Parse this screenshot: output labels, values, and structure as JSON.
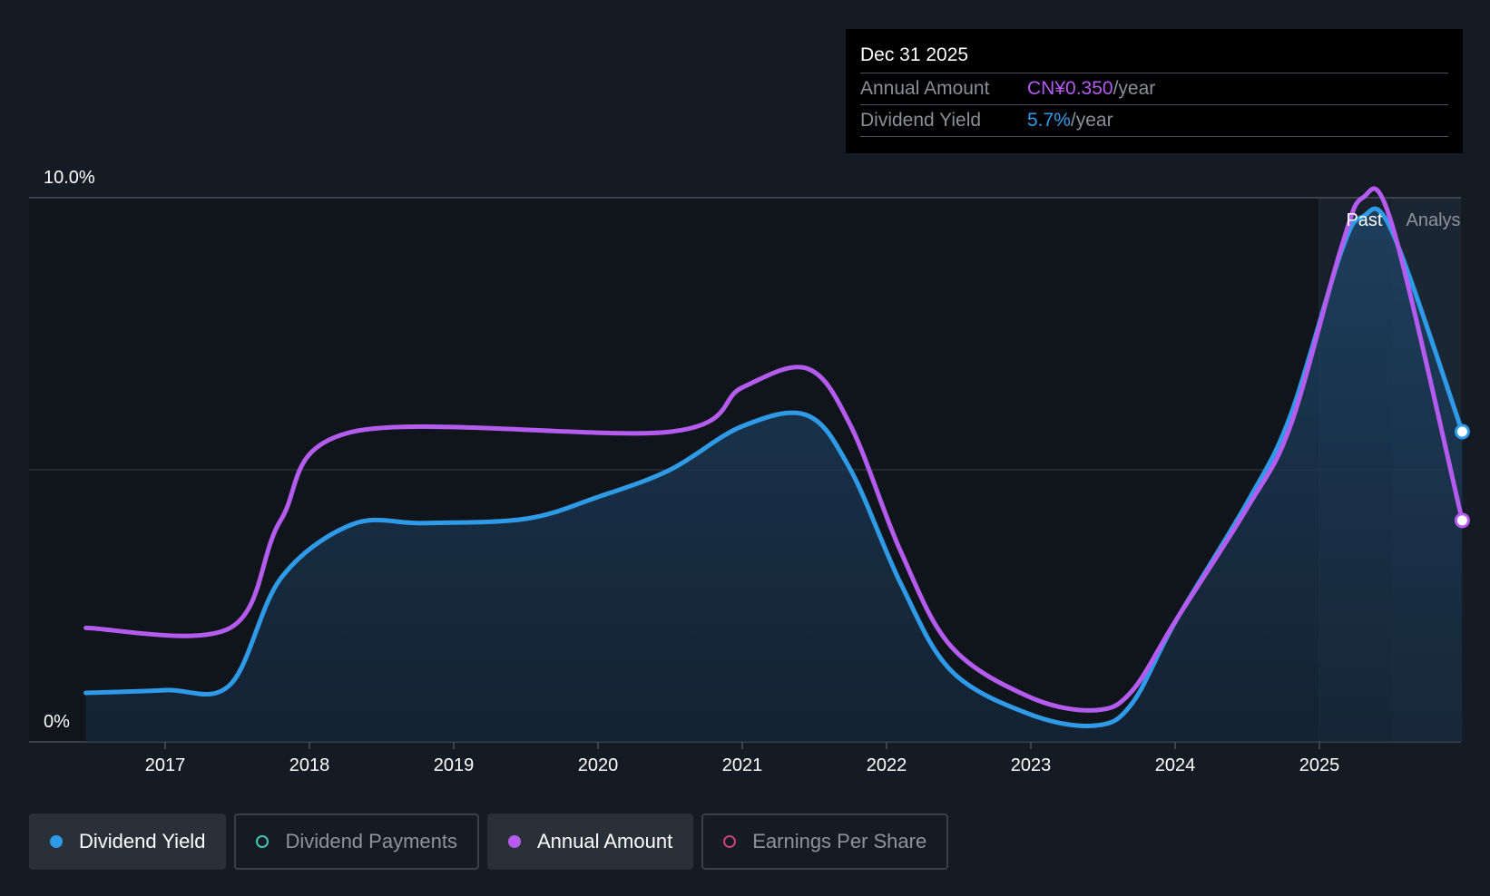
{
  "tooltip": {
    "date": "Dec 31 2025",
    "rows": [
      {
        "label": "Annual Amount",
        "value": "CN¥0.350",
        "unit": "/year"
      },
      {
        "label": "Dividend Yield",
        "value": "5.7%",
        "unit": "/year"
      }
    ]
  },
  "zones": {
    "past_label": "Past",
    "analyst_label": "Analys"
  },
  "legend": [
    {
      "label": "Dividend Yield",
      "color": "#2f9be8",
      "active": true,
      "filled": true
    },
    {
      "label": "Dividend Payments",
      "color": "#3fc6b4",
      "active": false,
      "filled": false
    },
    {
      "label": "Annual Amount",
      "color": "#b55cf0",
      "active": true,
      "filled": true
    },
    {
      "label": "Earnings Per Share",
      "color": "#c8407a",
      "active": false,
      "filled": false
    }
  ],
  "chart_data": {
    "type": "line",
    "x_ticks": [
      "2017",
      "2018",
      "2019",
      "2020",
      "2021",
      "2022",
      "2023",
      "2024",
      "2025"
    ],
    "y_ticks": [
      "0%",
      "10.0%"
    ],
    "ylim": [
      0,
      10
    ],
    "xlim": [
      2016.45,
      2025.99
    ],
    "grid": "horizontal",
    "legend_position": "bottom-left",
    "series": [
      {
        "name": "Dividend Yield",
        "color": "#2f9be8",
        "unit": "%",
        "points": [
          [
            2016.45,
            0.9
          ],
          [
            2017.0,
            0.95
          ],
          [
            2017.45,
            1.05
          ],
          [
            2017.8,
            3.0
          ],
          [
            2018.3,
            4.0
          ],
          [
            2018.8,
            4.02
          ],
          [
            2019.5,
            4.1
          ],
          [
            2020.0,
            4.5
          ],
          [
            2020.5,
            5.0
          ],
          [
            2021.0,
            5.8
          ],
          [
            2021.45,
            6.0
          ],
          [
            2021.75,
            5.0
          ],
          [
            2022.1,
            2.9
          ],
          [
            2022.45,
            1.3
          ],
          [
            2023.0,
            0.5
          ],
          [
            2023.45,
            0.3
          ],
          [
            2023.7,
            0.7
          ],
          [
            2024.0,
            2.2
          ],
          [
            2024.5,
            4.4
          ],
          [
            2024.8,
            6.0
          ],
          [
            2025.15,
            9.0
          ],
          [
            2025.3,
            9.65
          ],
          [
            2025.5,
            9.4
          ],
          [
            2025.99,
            5.7
          ]
        ]
      },
      {
        "name": "Annual Amount",
        "color": "#b55cf0",
        "unit": "CN¥",
        "points": [
          [
            2016.45,
            0.18
          ],
          [
            2017.45,
            0.18
          ],
          [
            2017.8,
            0.35
          ],
          [
            2018.3,
            0.49
          ],
          [
            2020.5,
            0.49
          ],
          [
            2021.0,
            0.56
          ],
          [
            2021.45,
            0.59
          ],
          [
            2021.75,
            0.5
          ],
          [
            2022.1,
            0.3
          ],
          [
            2022.45,
            0.15
          ],
          [
            2023.0,
            0.07
          ],
          [
            2023.45,
            0.05
          ],
          [
            2023.7,
            0.08
          ],
          [
            2024.0,
            0.19
          ],
          [
            2024.5,
            0.37
          ],
          [
            2024.8,
            0.5
          ],
          [
            2025.15,
            0.78
          ],
          [
            2025.3,
            0.86
          ],
          [
            2025.5,
            0.82
          ],
          [
            2025.99,
            0.35
          ]
        ]
      }
    ],
    "past_region_start": 2025.0,
    "analyst_region_start": 2025.5
  }
}
